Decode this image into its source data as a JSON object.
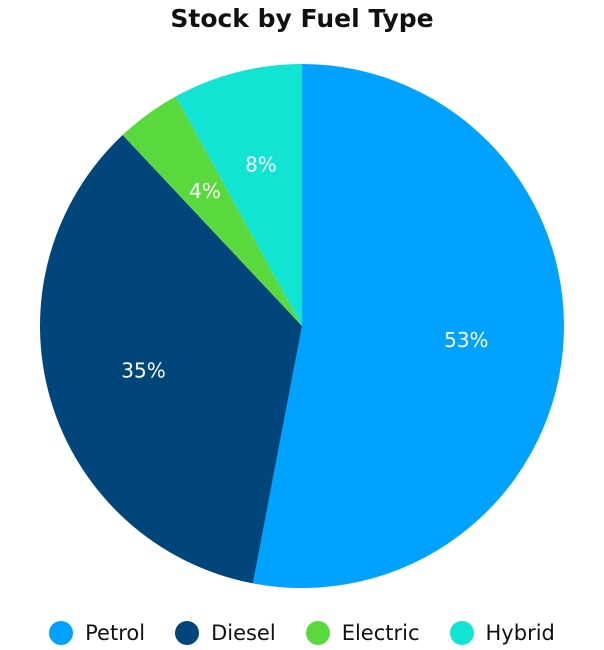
{
  "chart_data": {
    "type": "pie",
    "title": "Stock by Fuel Type",
    "series": [
      {
        "name": "Petrol",
        "value": 53,
        "label": "53%",
        "color": "#00a2ff"
      },
      {
        "name": "Diesel",
        "value": 35,
        "label": "35%",
        "color": "#00467a"
      },
      {
        "name": "Electric",
        "value": 4,
        "label": "4%",
        "color": "#5ad93e"
      },
      {
        "name": "Hybrid",
        "value": 8,
        "label": "8%",
        "color": "#12e4d4"
      }
    ],
    "legend_position": "bottom"
  }
}
